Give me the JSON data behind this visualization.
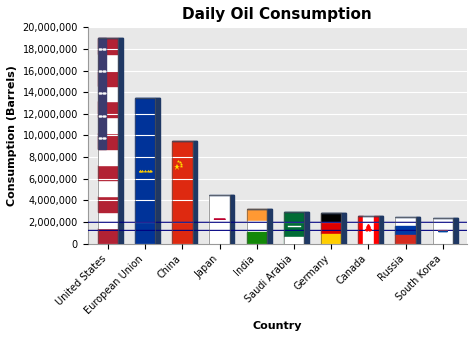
{
  "categories": [
    "United States",
    "European Union",
    "China",
    "Japan",
    "India",
    "Saudi Arabia",
    "Germany",
    "Canada",
    "Russia",
    "South Korea"
  ],
  "values": [
    19000000,
    13500000,
    9500000,
    4500000,
    3200000,
    2900000,
    2800000,
    2600000,
    2500000,
    2400000
  ],
  "title": "Daily Oil Consumption",
  "xlabel": "Country",
  "ylabel": "Consumption (Barrels)",
  "ylim": [
    0,
    20000000
  ],
  "yticks": [
    0,
    2000000,
    4000000,
    6000000,
    8000000,
    10000000,
    12000000,
    14000000,
    16000000,
    18000000,
    20000000
  ],
  "background_color": "#FFFFFF",
  "grid_color": "#CCCCCC",
  "side_color": "#1F3864",
  "title_fontsize": 11,
  "axis_label_fontsize": 8,
  "tick_fontsize": 7,
  "bar_width": 0.55,
  "depth": 0.12
}
